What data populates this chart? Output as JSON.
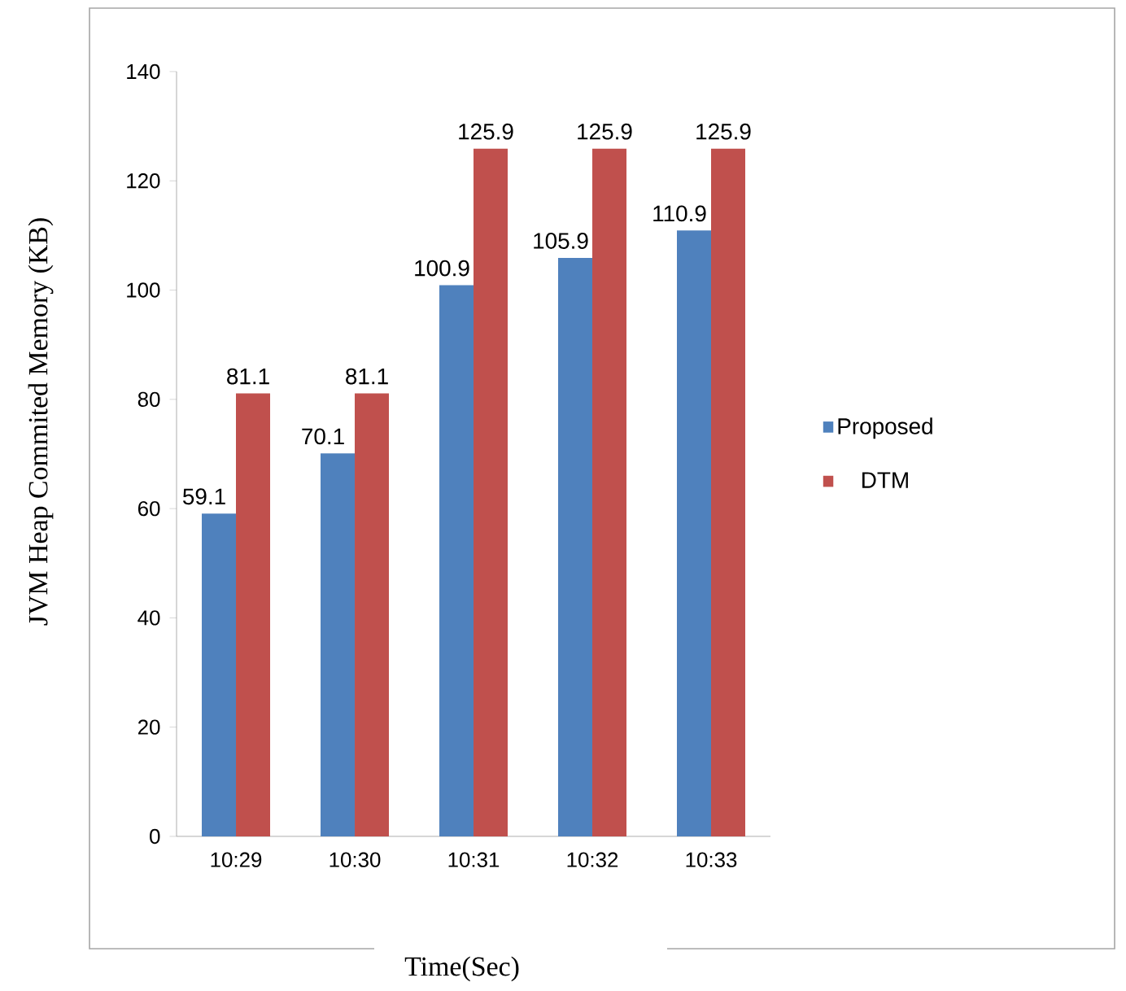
{
  "chart_data": {
    "type": "bar",
    "xlabel": "Time(Sec)",
    "ylabel": "JVM Heap Commited Memory (KB)",
    "categories": [
      "10:29",
      "10:30",
      "10:31",
      "10:32",
      "10:33"
    ],
    "series": [
      {
        "name": "Proposed",
        "color": "#4f81bd",
        "values": [
          59.1,
          70.1,
          100.9,
          105.9,
          110.9
        ]
      },
      {
        "name": "DTM",
        "color": "#c0504d",
        "values": [
          81.1,
          81.1,
          125.9,
          125.9,
          125.9
        ]
      }
    ],
    "ylim": [
      0,
      140
    ],
    "yticks": [
      0,
      20,
      40,
      60,
      80,
      100,
      120,
      140
    ],
    "data_labels": true,
    "legend": "right",
    "grid": false
  }
}
